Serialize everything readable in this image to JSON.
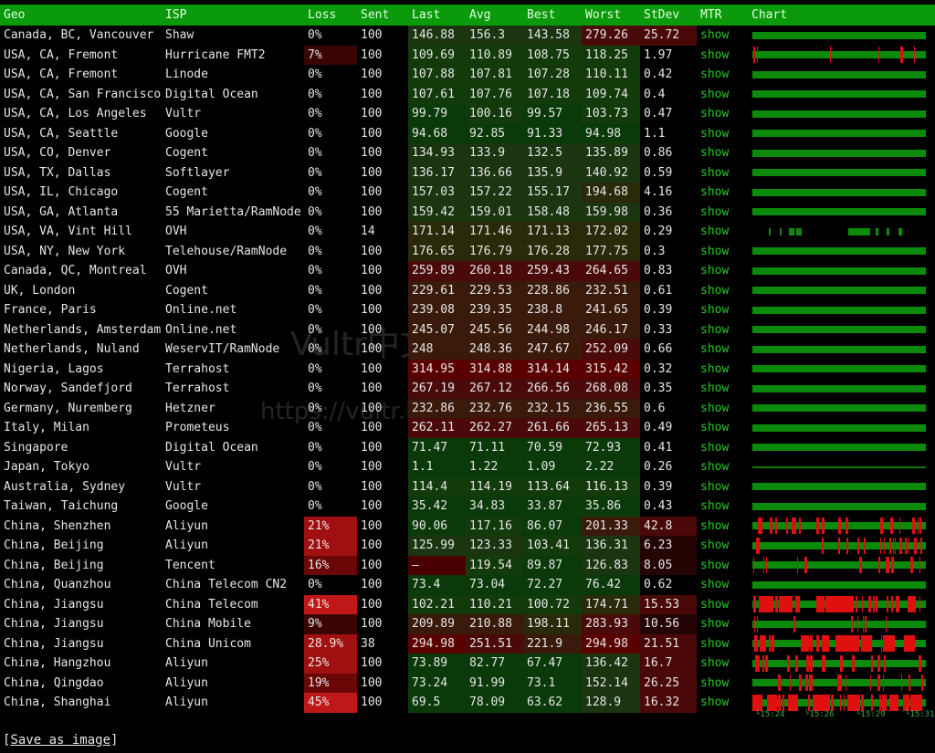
{
  "header": {
    "geo": "Geo",
    "isp": "ISP",
    "loss": "Loss",
    "sent": "Sent",
    "last": "Last",
    "avg": "Avg",
    "best": "Best",
    "worst": "Worst",
    "stdev": "StDev",
    "mtr": "MTR",
    "chart": "Chart"
  },
  "mtr_label": "show",
  "colors": {
    "header_bg": "#0b9a0b",
    "mtr_link": "#22cc22",
    "chart_green": "#0b8a0b",
    "chart_red": "#e01010"
  },
  "rows": [
    {
      "geo": "Canada, BC, Vancouver",
      "isp": "Shaw",
      "loss": "0%",
      "sent": "100",
      "last": "146.88",
      "avg": "156.3",
      "best": "143.58",
      "worst": "279.26",
      "stdev": "25.72"
    },
    {
      "geo": "USA, CA, Fremont",
      "isp": "Hurricane FMT2",
      "loss": "7%",
      "sent": "100",
      "last": "109.69",
      "avg": "110.89",
      "best": "108.75",
      "worst": "118.25",
      "stdev": "1.97"
    },
    {
      "geo": "USA, CA, Fremont",
      "isp": "Linode",
      "loss": "0%",
      "sent": "100",
      "last": "107.88",
      "avg": "107.81",
      "best": "107.28",
      "worst": "110.11",
      "stdev": "0.42"
    },
    {
      "geo": "USA, CA, San Francisco",
      "isp": "Digital Ocean",
      "loss": "0%",
      "sent": "100",
      "last": "107.61",
      "avg": "107.76",
      "best": "107.18",
      "worst": "109.74",
      "stdev": "0.4"
    },
    {
      "geo": "USA, CA, Los Angeles",
      "isp": "Vultr",
      "loss": "0%",
      "sent": "100",
      "last": "99.79",
      "avg": "100.16",
      "best": "99.57",
      "worst": "103.73",
      "stdev": "0.47"
    },
    {
      "geo": "USA, CA, Seattle",
      "isp": "Google",
      "loss": "0%",
      "sent": "100",
      "last": "94.68",
      "avg": "92.85",
      "best": "91.33",
      "worst": "94.98",
      "stdev": "1.1"
    },
    {
      "geo": "USA, CO, Denver",
      "isp": "Cogent",
      "loss": "0%",
      "sent": "100",
      "last": "134.93",
      "avg": "133.9",
      "best": "132.5",
      "worst": "135.89",
      "stdev": "0.86"
    },
    {
      "geo": "USA, TX, Dallas",
      "isp": "Softlayer",
      "loss": "0%",
      "sent": "100",
      "last": "136.17",
      "avg": "136.66",
      "best": "135.9",
      "worst": "140.92",
      "stdev": "0.59"
    },
    {
      "geo": "USA, IL, Chicago",
      "isp": "Cogent",
      "loss": "0%",
      "sent": "100",
      "last": "157.03",
      "avg": "157.22",
      "best": "155.17",
      "worst": "194.68",
      "stdev": "4.16"
    },
    {
      "geo": "USA, GA, Atlanta",
      "isp": "55 Marietta/RamNode",
      "loss": "0%",
      "sent": "100",
      "last": "159.42",
      "avg": "159.01",
      "best": "158.48",
      "worst": "159.98",
      "stdev": "0.36"
    },
    {
      "geo": "USA, VA, Vint Hill",
      "isp": "OVH",
      "loss": "0%",
      "sent": "14",
      "last": "171.14",
      "avg": "171.46",
      "best": "171.13",
      "worst": "172.02",
      "stdev": "0.29"
    },
    {
      "geo": "USA, NY, New York",
      "isp": "Telehouse/RamNode",
      "loss": "0%",
      "sent": "100",
      "last": "176.65",
      "avg": "176.79",
      "best": "176.28",
      "worst": "177.75",
      "stdev": "0.3"
    },
    {
      "geo": "Canada, QC, Montreal",
      "isp": "OVH",
      "loss": "0%",
      "sent": "100",
      "last": "259.89",
      "avg": "260.18",
      "best": "259.43",
      "worst": "264.65",
      "stdev": "0.83"
    },
    {
      "geo": "UK, London",
      "isp": "Cogent",
      "loss": "0%",
      "sent": "100",
      "last": "229.61",
      "avg": "229.53",
      "best": "228.86",
      "worst": "232.51",
      "stdev": "0.61"
    },
    {
      "geo": "France, Paris",
      "isp": "Online.net",
      "loss": "0%",
      "sent": "100",
      "last": "239.08",
      "avg": "239.35",
      "best": "238.8",
      "worst": "241.65",
      "stdev": "0.39"
    },
    {
      "geo": "Netherlands, Amsterdam",
      "isp": "Online.net",
      "loss": "0%",
      "sent": "100",
      "last": "245.07",
      "avg": "245.56",
      "best": "244.98",
      "worst": "246.17",
      "stdev": "0.33"
    },
    {
      "geo": "Netherlands, Nuland",
      "isp": "WeservIT/RamNode",
      "loss": "0%",
      "sent": "100",
      "last": "248",
      "avg": "248.36",
      "best": "247.67",
      "worst": "252.09",
      "stdev": "0.66"
    },
    {
      "geo": "Nigeria, Lagos",
      "isp": "Terrahost",
      "loss": "0%",
      "sent": "100",
      "last": "314.95",
      "avg": "314.88",
      "best": "314.14",
      "worst": "315.42",
      "stdev": "0.32"
    },
    {
      "geo": "Norway, Sandefjord",
      "isp": "Terrahost",
      "loss": "0%",
      "sent": "100",
      "last": "267.19",
      "avg": "267.12",
      "best": "266.56",
      "worst": "268.08",
      "stdev": "0.35"
    },
    {
      "geo": "Germany, Nuremberg",
      "isp": "Hetzner",
      "loss": "0%",
      "sent": "100",
      "last": "232.86",
      "avg": "232.76",
      "best": "232.15",
      "worst": "236.55",
      "stdev": "0.6"
    },
    {
      "geo": "Italy, Milan",
      "isp": "Prometeus",
      "loss": "0%",
      "sent": "100",
      "last": "262.11",
      "avg": "262.27",
      "best": "261.66",
      "worst": "265.13",
      "stdev": "0.49"
    },
    {
      "geo": "Singapore",
      "isp": "Digital Ocean",
      "loss": "0%",
      "sent": "100",
      "last": "71.47",
      "avg": "71.11",
      "best": "70.59",
      "worst": "72.93",
      "stdev": "0.41"
    },
    {
      "geo": "Japan, Tokyo",
      "isp": "Vultr",
      "loss": "0%",
      "sent": "100",
      "last": "1.1",
      "avg": "1.22",
      "best": "1.09",
      "worst": "2.22",
      "stdev": "0.26"
    },
    {
      "geo": "Australia, Sydney",
      "isp": "Vultr",
      "loss": "0%",
      "sent": "100",
      "last": "114.4",
      "avg": "114.19",
      "best": "113.64",
      "worst": "116.13",
      "stdev": "0.39"
    },
    {
      "geo": "Taiwan, Taichung",
      "isp": "Google",
      "loss": "0%",
      "sent": "100",
      "last": "35.42",
      "avg": "34.83",
      "best": "33.87",
      "worst": "35.86",
      "stdev": "0.43"
    },
    {
      "geo": "China, Shenzhen",
      "isp": "Aliyun",
      "loss": "21%",
      "sent": "100",
      "last": "90.06",
      "avg": "117.16",
      "best": "86.07",
      "worst": "201.33",
      "stdev": "42.8"
    },
    {
      "geo": "China, Beijing",
      "isp": "Aliyun",
      "loss": "21%",
      "sent": "100",
      "last": "125.99",
      "avg": "123.33",
      "best": "103.41",
      "worst": "136.31",
      "stdev": "6.23"
    },
    {
      "geo": "China, Beijing",
      "isp": "Tencent",
      "loss": "16%",
      "sent": "100",
      "last": "–",
      "avg": "119.54",
      "best": "89.87",
      "worst": "126.83",
      "stdev": "8.05"
    },
    {
      "geo": "China, Quanzhou",
      "isp": "China Telecom CN2",
      "loss": "0%",
      "sent": "100",
      "last": "73.4",
      "avg": "73.04",
      "best": "72.27",
      "worst": "76.42",
      "stdev": "0.62"
    },
    {
      "geo": "China, Jiangsu",
      "isp": "China Telecom",
      "loss": "41%",
      "sent": "100",
      "last": "102.21",
      "avg": "110.21",
      "best": "100.72",
      "worst": "174.71",
      "stdev": "15.53"
    },
    {
      "geo": "China, Jiangsu",
      "isp": "China Mobile",
      "loss": "9%",
      "sent": "100",
      "last": "209.89",
      "avg": "210.88",
      "best": "198.11",
      "worst": "283.93",
      "stdev": "10.56"
    },
    {
      "geo": "China, Jiangsu",
      "isp": "China Unicom",
      "loss": "28.9%",
      "sent": "38",
      "last": "294.98",
      "avg": "251.51",
      "best": "221.9",
      "worst": "294.98",
      "stdev": "21.51"
    },
    {
      "geo": "China, Hangzhou",
      "isp": "Aliyun",
      "loss": "25%",
      "sent": "100",
      "last": "73.89",
      "avg": "82.77",
      "best": "67.47",
      "worst": "136.42",
      "stdev": "16.7"
    },
    {
      "geo": "China, Qingdao",
      "isp": "Aliyun",
      "loss": "19%",
      "sent": "100",
      "last": "73.24",
      "avg": "91.99",
      "best": "73.1",
      "worst": "152.14",
      "stdev": "26.25"
    },
    {
      "geo": "China, Shanghai",
      "isp": "Aliyun",
      "loss": "45%",
      "sent": "100",
      "last": "69.5",
      "avg": "78.09",
      "best": "63.62",
      "worst": "128.9",
      "stdev": "16.32"
    }
  ],
  "chart_axis": [
    "└15:24",
    "└15:26",
    "└15:29",
    "└15:31"
  ],
  "save_link": {
    "open": "[",
    "label": "Save as image",
    "close": "]"
  },
  "watermark": {
    "line1": "Vultr中文指南网",
    "line2": "https://vultr.ladsov.com/"
  }
}
